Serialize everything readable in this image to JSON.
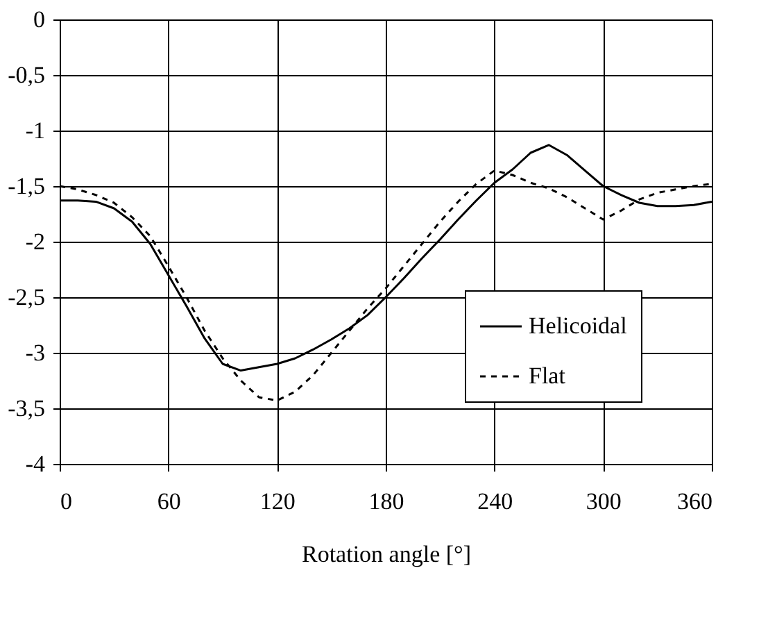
{
  "chart_data": {
    "type": "line",
    "xlabel": "Rotation angle [°]",
    "x": [
      0,
      10,
      20,
      30,
      40,
      50,
      60,
      70,
      80,
      90,
      100,
      110,
      120,
      130,
      140,
      150,
      160,
      170,
      180,
      190,
      200,
      210,
      220,
      230,
      240,
      250,
      260,
      270,
      280,
      290,
      300,
      310,
      320,
      330,
      340,
      350,
      360
    ],
    "series": [
      {
        "name": "Helicoidal",
        "color": "#000000",
        "line_style": "solid",
        "values": [
          -1.63,
          -1.63,
          -1.64,
          -1.7,
          -1.82,
          -2.02,
          -2.3,
          -2.58,
          -2.87,
          -3.1,
          -3.16,
          -3.13,
          -3.1,
          -3.05,
          -2.97,
          -2.88,
          -2.78,
          -2.66,
          -2.5,
          -2.33,
          -2.15,
          -1.98,
          -1.8,
          -1.63,
          -1.47,
          -1.35,
          -1.2,
          -1.13,
          -1.22,
          -1.36,
          -1.5,
          -1.58,
          -1.65,
          -1.68,
          -1.68,
          -1.67,
          -1.64
        ]
      },
      {
        "name": "Flat",
        "color": "#000000",
        "line_style": "dashed",
        "values": [
          -1.5,
          -1.53,
          -1.58,
          -1.65,
          -1.78,
          -1.95,
          -2.22,
          -2.5,
          -2.8,
          -3.05,
          -3.25,
          -3.4,
          -3.43,
          -3.35,
          -3.2,
          -3.0,
          -2.8,
          -2.6,
          -2.42,
          -2.22,
          -2.02,
          -1.82,
          -1.64,
          -1.48,
          -1.36,
          -1.4,
          -1.47,
          -1.52,
          -1.6,
          -1.7,
          -1.8,
          -1.72,
          -1.62,
          -1.56,
          -1.53,
          -1.5,
          -1.48
        ]
      }
    ],
    "xlim": [
      0,
      360
    ],
    "xticks": [
      0,
      60,
      120,
      180,
      240,
      300,
      360
    ],
    "ylim": [
      -4,
      0
    ],
    "yticks": [
      {
        "value": -4,
        "label": "-4"
      },
      {
        "value": -3.5,
        "label": "-3,5"
      },
      {
        "value": -3,
        "label": "-3"
      },
      {
        "value": -2.5,
        "label": "-2,5"
      },
      {
        "value": -2,
        "label": "-2"
      },
      {
        "value": -1.5,
        "label": "-1,5"
      },
      {
        "value": -1,
        "label": "-1"
      },
      {
        "value": -0.5,
        "label": "-0,5"
      },
      {
        "value": 0,
        "label": "0"
      }
    ],
    "grid": true,
    "legend": "bottom right",
    "marker": "none"
  }
}
